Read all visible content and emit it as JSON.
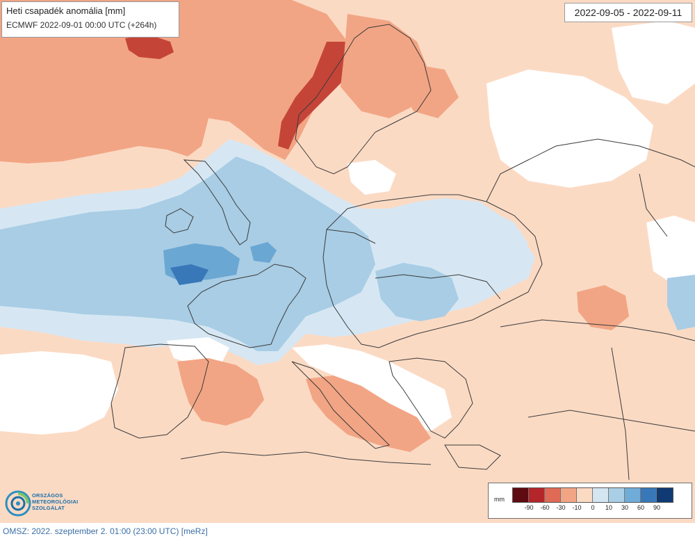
{
  "title": "Heti csapadék anomália [mm]",
  "model_line": "ECMWF 2022-09-01 00:00 UTC (+264h)",
  "period": "2022-09-05 - 2022-09-11",
  "legend": {
    "unit": "mm",
    "ticks": [
      "-90",
      "-60",
      "-30",
      "-10",
      "0",
      "10",
      "30",
      "60",
      "90"
    ],
    "colors": [
      "#5e0b12",
      "#b5262b",
      "#df6a55",
      "#f2a584",
      "#fbdac4",
      "#d4e6f2",
      "#a9cfe6",
      "#6fadd8",
      "#3878b8",
      "#0f3a73"
    ]
  },
  "colors": {
    "dry_light": "#fbdac4",
    "dry_mid": "#f2a584",
    "dry_strong": "#e07a62",
    "dry_extreme": "#c44538",
    "wet_light": "#d6e7f3",
    "wet_mid": "#a8cde5",
    "wet_strong": "#6ba7d3",
    "wet_extreme": "#3878b8",
    "boundary": "#3a3a3a"
  },
  "logo": {
    "line1": "ORSZÁGOS",
    "line2": "METEOROLÓGIAI",
    "line3": "SZOLGÁLAT"
  },
  "footer": "OMSZ: 2022. szeptember 2. 01:00 (23:00 UTC) [meRz]"
}
